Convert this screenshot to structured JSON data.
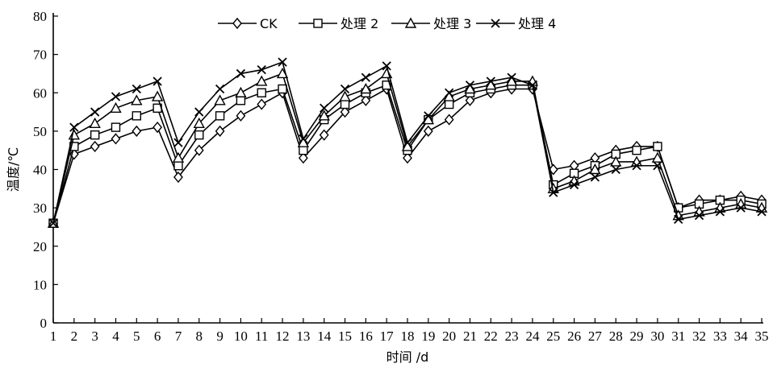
{
  "chart_data": {
    "type": "line",
    "title": "",
    "xlabel": "时间 /d",
    "ylabel": "温度/℃",
    "x": [
      1,
      2,
      3,
      4,
      5,
      6,
      7,
      8,
      9,
      10,
      11,
      12,
      13,
      14,
      15,
      16,
      17,
      18,
      19,
      20,
      21,
      22,
      23,
      24,
      25,
      26,
      27,
      28,
      29,
      30,
      31,
      32,
      33,
      34,
      35
    ],
    "xlim": [
      1,
      35
    ],
    "ylim": [
      0,
      80
    ],
    "yticks": [
      0,
      10,
      20,
      30,
      40,
      50,
      60,
      70,
      80
    ],
    "legend_position": "top-center",
    "series": [
      {
        "name": "CK",
        "marker": "diamond",
        "values": [
          26,
          44,
          46,
          48,
          50,
          51,
          38,
          45,
          50,
          54,
          57,
          60,
          43,
          49,
          55,
          58,
          61,
          43,
          50,
          53,
          58,
          60,
          61,
          61,
          40,
          41,
          43,
          45,
          46,
          46,
          30,
          32,
          32,
          33,
          32
        ]
      },
      {
        "name": "处理 2",
        "marker": "square",
        "values": [
          26,
          46,
          49,
          51,
          54,
          56,
          41,
          49,
          54,
          58,
          60,
          61,
          45,
          53,
          57,
          60,
          62,
          45,
          53,
          57,
          60,
          61,
          62,
          62,
          36,
          39,
          41,
          44,
          45,
          46,
          30,
          31,
          32,
          32,
          31
        ]
      },
      {
        "name": "处理 3",
        "marker": "triangle",
        "values": [
          26,
          49,
          52,
          56,
          58,
          59,
          43,
          52,
          58,
          60,
          63,
          65,
          47,
          54,
          59,
          61,
          65,
          46,
          53,
          59,
          61,
          62,
          63,
          63,
          35,
          37,
          40,
          42,
          42,
          43,
          28,
          29,
          30,
          31,
          30
        ]
      },
      {
        "name": "处理 4",
        "marker": "x",
        "values": [
          26,
          51,
          55,
          59,
          61,
          63,
          47,
          55,
          61,
          65,
          66,
          68,
          48,
          56,
          61,
          64,
          67,
          47,
          54,
          60,
          62,
          63,
          64,
          62,
          34,
          36,
          38,
          40,
          41,
          41,
          27,
          28,
          29,
          30,
          29
        ]
      }
    ]
  }
}
